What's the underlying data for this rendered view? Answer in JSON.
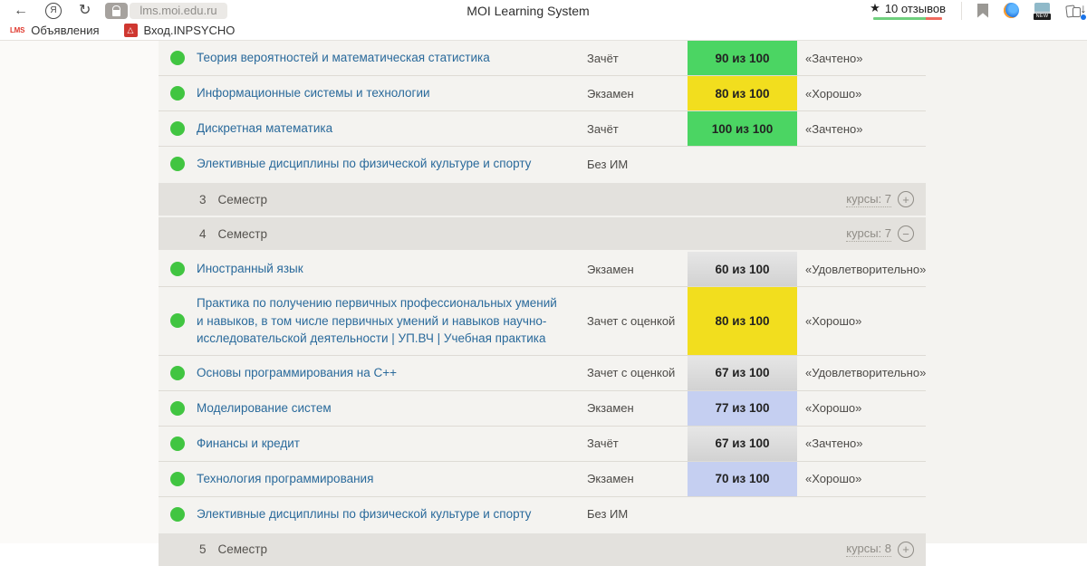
{
  "browser": {
    "toolbar": {
      "url": "lms.moi.edu.ru",
      "page_title": "MOI Learning System",
      "reviews_star": "★",
      "reviews_label": "10 отзывов",
      "new_badge": "NEW",
      "back_glyph": "←",
      "refresh_glyph": "↻",
      "yandex_glyph": "Я",
      "download_glyph": "↓"
    },
    "bookmarks_bar": {
      "items": [
        {
          "favicon_text": "LMS",
          "label": "Объявления"
        },
        {
          "favicon_text": "△",
          "label": "Вход.INPSYCHO"
        }
      ]
    }
  },
  "colors": {
    "score_green": "#4bd563",
    "score_yellow": "#f2de1e",
    "score_silver": "#d9d9d9",
    "score_blue": "#c5cff1",
    "status_dot_green": "#41c541",
    "course_link_blue": "#2a6a9b",
    "section_header_bg": "#e3e1dd",
    "rating_bar_green": "#6fcf7e",
    "rating_bar_red": "#ef6a5e"
  },
  "table": {
    "rows": [
      {
        "type": "course",
        "name": "Теория вероятностей и математическая статистика",
        "exam": "Зачёт",
        "score": "90 из 100",
        "score_style": "green",
        "grade": "«Зачтено»"
      },
      {
        "type": "course",
        "name": "Информационные системы и технологии",
        "exam": "Экзамен",
        "score": "80 из 100",
        "score_style": "yellow",
        "grade": "«Хорошо»"
      },
      {
        "type": "course",
        "name": "Дискретная математика",
        "exam": "Зачёт",
        "score": "100 из 100",
        "score_style": "green",
        "grade": "«Зачтено»"
      },
      {
        "type": "course",
        "name": "Элективные дисциплины по физической культуре и спорту",
        "exam": "Без ИМ",
        "score": null,
        "score_style": null,
        "grade": null
      },
      {
        "type": "section",
        "number": "3",
        "label": "Семестр",
        "courses_label": "курсы: 7",
        "expand": "plus"
      },
      {
        "type": "section",
        "number": "4",
        "label": "Семестр",
        "courses_label": "курсы: 7",
        "expand": "minus"
      },
      {
        "type": "course",
        "name": "Иностранный язык",
        "exam": "Экзамен",
        "score": "60 из 100",
        "score_style": "silver",
        "grade": "«Удовлетворительно»"
      },
      {
        "type": "course",
        "name": "Практика по получению первичных профессиональных умений и навыков, в том числе первичных умений и навыков научно-исследовательской деятельности | УП.ВЧ | Учебная практика",
        "exam": "Зачет с оценкой",
        "score": "80 из 100",
        "score_style": "yellow",
        "grade": "«Хорошо»"
      },
      {
        "type": "course",
        "name": "Основы программирования на C++",
        "exam": "Зачет с оценкой",
        "score": "67 из 100",
        "score_style": "silver",
        "grade": "«Удовлетворительно»"
      },
      {
        "type": "course",
        "name": "Моделирование систем",
        "exam": "Экзамен",
        "score": "77 из 100",
        "score_style": "blue",
        "grade": "«Хорошо»"
      },
      {
        "type": "course",
        "name": "Финансы и кредит",
        "exam": "Зачёт",
        "score": "67 из 100",
        "score_style": "silver",
        "grade": "«Зачтено»"
      },
      {
        "type": "course",
        "name": "Технология программирования",
        "exam": "Экзамен",
        "score": "70 из 100",
        "score_style": "blue",
        "grade": "«Хорошо»"
      },
      {
        "type": "course",
        "name": "Элективные дисциплины по физической культуре и спорту",
        "exam": "Без ИМ",
        "score": null,
        "score_style": null,
        "grade": null
      },
      {
        "type": "section",
        "number": "5",
        "label": "Семестр",
        "courses_label": "курсы: 8",
        "expand": "plus"
      }
    ]
  }
}
